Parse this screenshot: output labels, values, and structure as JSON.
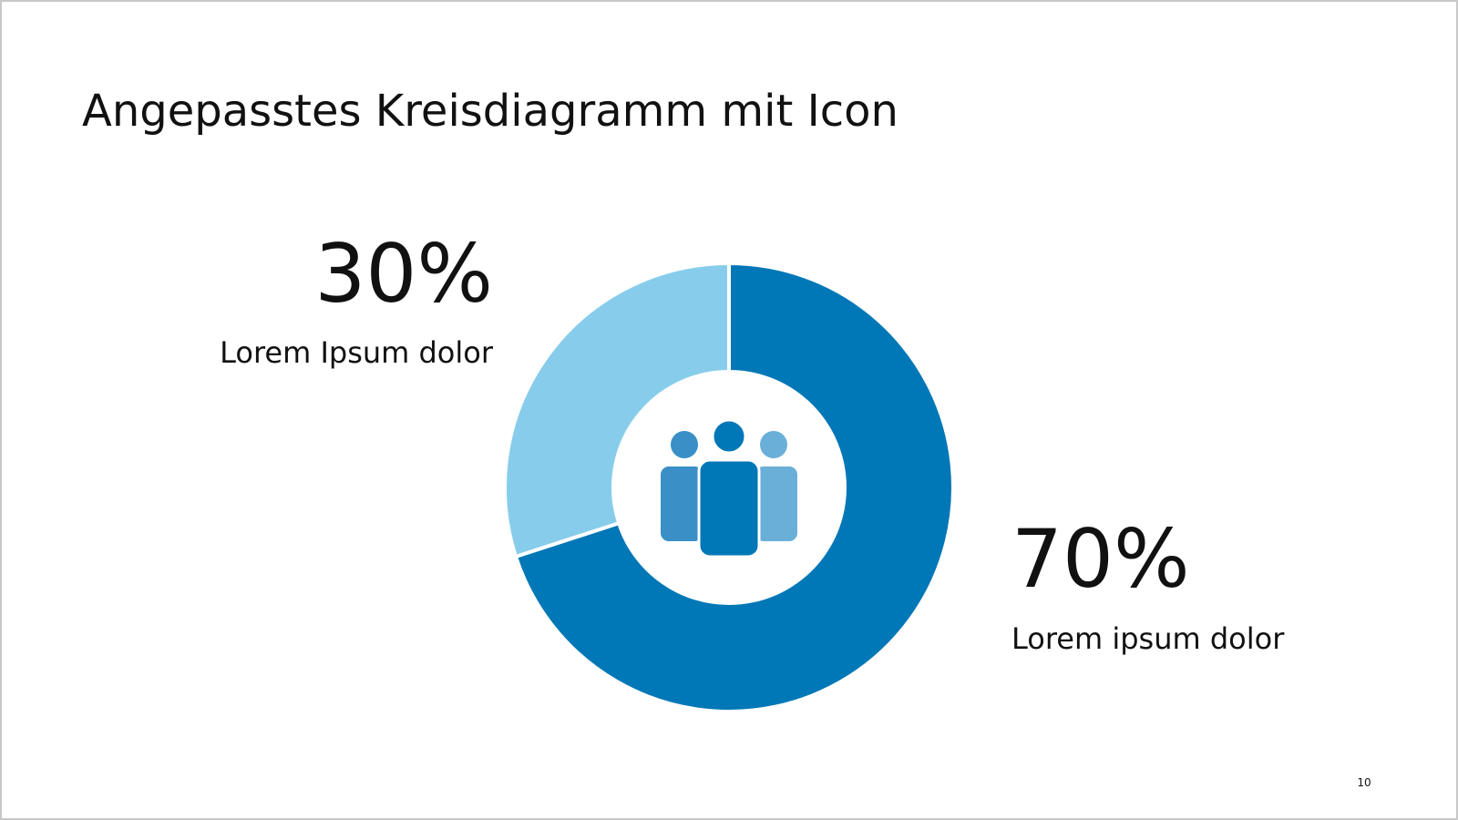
{
  "chart_data": {
    "type": "donut",
    "title": "Angepasstes Kreisdiagramm mit Icon",
    "categories": [
      "Lorem Ipsum dolor",
      "Lorem ipsum dolor"
    ],
    "values": [
      30,
      70
    ],
    "value_labels": [
      "30%",
      "70%"
    ],
    "colors": [
      "#87cdeb",
      "#0077b6"
    ]
  },
  "page_number": "10"
}
